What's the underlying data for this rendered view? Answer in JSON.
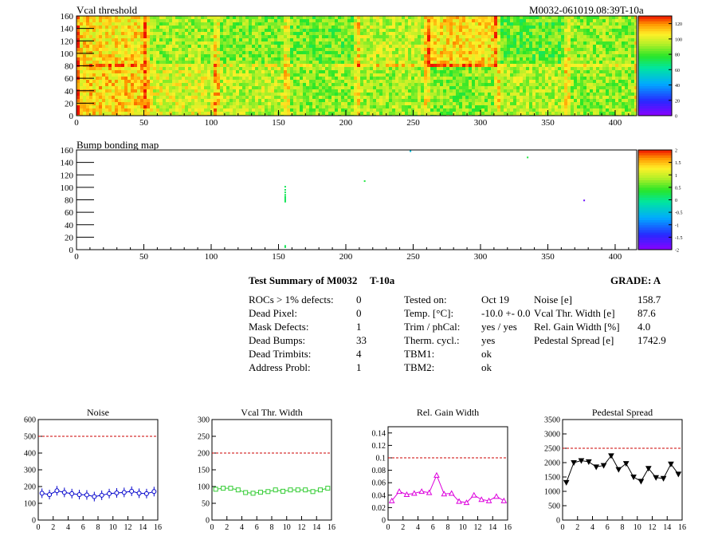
{
  "header": {
    "map1_title": "Vcal threshold",
    "module_id": "M0032-061019.08:39T-10a",
    "map2_title": "Bump bonding map"
  },
  "colors": {
    "red_ref": "#cc0000",
    "blue_line": "#0000cc",
    "green_line": "#33cc33",
    "magenta_line": "#dd00dd",
    "black_line": "#000000"
  },
  "summary": {
    "title": "Test Summary of M0032",
    "tag": "T-10a",
    "grade": "GRADE:  A",
    "left": [
      {
        "label": "ROCs > 1% defects:",
        "value": "0"
      },
      {
        "label": "Dead Pixel:",
        "value": "0"
      },
      {
        "label": "Mask Defects:",
        "value": "1"
      },
      {
        "label": "Dead Bumps:",
        "value": "33"
      },
      {
        "label": "Dead Trimbits:",
        "value": "4"
      },
      {
        "label": "Address Probl:",
        "value": "1"
      }
    ],
    "mid": [
      {
        "label": "Tested on:",
        "value": "Oct 19"
      },
      {
        "label": "Temp. [°C]:",
        "value": "-10.0 +- 0.0"
      },
      {
        "label": "Trim / phCal:",
        "value": "yes / yes"
      },
      {
        "label": "Therm. cycl.:",
        "value": "yes"
      },
      {
        "label": "TBM1:",
        "value": "ok"
      },
      {
        "label": "TBM2:",
        "value": "ok"
      }
    ],
    "right": [
      {
        "label": "Noise [e]",
        "value": "158.7"
      },
      {
        "label": "Vcal Thr. Width [e]",
        "value": "87.6"
      },
      {
        "label": "Rel. Gain Width [%]",
        "value": "4.0"
      },
      {
        "label": "Pedestal Spread [e]",
        "value": "1742.9"
      }
    ]
  },
  "chart_data": [
    {
      "type": "heatmap",
      "title": "Vcal threshold",
      "xlim": [
        0,
        416
      ],
      "ylim": [
        0,
        160
      ],
      "x_ticks": [
        0,
        50,
        100,
        150,
        200,
        250,
        300,
        350,
        400
      ],
      "y_ticks": [
        0,
        20,
        40,
        60,
        80,
        100,
        120,
        140,
        160
      ],
      "colorbar_ticks": [
        0,
        20,
        40,
        60,
        80,
        100,
        120
      ],
      "colorbar_range": [
        0,
        130
      ],
      "roc_block_mean_values_top": [
        108,
        92,
        88,
        86,
        96,
        108,
        84,
        90
      ],
      "roc_block_mean_values_bottom": [
        110,
        100,
        96,
        90,
        92,
        88,
        94,
        90
      ]
    },
    {
      "type": "scatter",
      "title": "Bump bonding map",
      "xlim": [
        0,
        416
      ],
      "ylim": [
        0,
        160
      ],
      "x_ticks": [
        0,
        50,
        100,
        150,
        200,
        250,
        300,
        350,
        400
      ],
      "y_ticks": [
        0,
        20,
        40,
        60,
        80,
        100,
        120,
        140,
        160
      ],
      "colorbar_ticks": [
        -2,
        -1.5,
        -1,
        -0.5,
        0,
        0.5,
        1,
        1.5,
        2
      ],
      "points": [
        {
          "x": 155,
          "y": 101,
          "v": 0.2
        },
        {
          "x": 155,
          "y": 96,
          "v": 0.2
        },
        {
          "x": 155,
          "y": 92,
          "v": 0.2
        },
        {
          "x": 155,
          "y": 88,
          "v": 0.2
        },
        {
          "x": 155,
          "y": 85,
          "v": 0.2
        },
        {
          "x": 155,
          "y": 83,
          "v": 0.2
        },
        {
          "x": 155,
          "y": 81,
          "v": 0.2
        },
        {
          "x": 155,
          "y": 79,
          "v": 0.2
        },
        {
          "x": 155,
          "y": 77,
          "v": 0.2
        },
        {
          "x": 155,
          "y": 6,
          "v": 0.2
        },
        {
          "x": 155,
          "y": 4,
          "v": 0.2
        },
        {
          "x": 248,
          "y": 158,
          "v": -0.5
        },
        {
          "x": 335,
          "y": 148,
          "v": 0.3
        },
        {
          "x": 377,
          "y": 79,
          "v": -1.8
        },
        {
          "x": 214,
          "y": 110,
          "v": 0.3
        }
      ]
    },
    {
      "type": "line",
      "title": "Noise",
      "xlim": [
        0,
        16
      ],
      "ylim": [
        0,
        600
      ],
      "x_ticks": [
        0,
        2,
        4,
        6,
        8,
        10,
        12,
        14,
        16
      ],
      "y_ticks": [
        0,
        100,
        200,
        300,
        400,
        500,
        600
      ],
      "reference": 500,
      "marker": "circle",
      "x": [
        0.5,
        1.5,
        2.5,
        3.5,
        4.5,
        5.5,
        6.5,
        7.5,
        8.5,
        9.5,
        10.5,
        11.5,
        12.5,
        13.5,
        14.5,
        15.5
      ],
      "values": [
        160,
        152,
        175,
        165,
        158,
        152,
        150,
        140,
        148,
        158,
        162,
        165,
        172,
        160,
        158,
        170
      ]
    },
    {
      "type": "line",
      "title": "Vcal Thr. Width",
      "xlim": [
        0,
        16
      ],
      "ylim": [
        0,
        300
      ],
      "x_ticks": [
        0,
        2,
        4,
        6,
        8,
        10,
        12,
        14,
        16
      ],
      "y_ticks": [
        0,
        50,
        100,
        150,
        200,
        250,
        300
      ],
      "reference": 200,
      "marker": "square",
      "x": [
        0.5,
        1.5,
        2.5,
        3.5,
        4.5,
        5.5,
        6.5,
        7.5,
        8.5,
        9.5,
        10.5,
        11.5,
        12.5,
        13.5,
        14.5,
        15.5
      ],
      "values": [
        92,
        95,
        95,
        90,
        82,
        80,
        83,
        85,
        90,
        86,
        90,
        90,
        90,
        85,
        90,
        95
      ]
    },
    {
      "type": "line",
      "title": "Rel. Gain Width",
      "xlim": [
        0,
        16
      ],
      "ylim": [
        0,
        0.15
      ],
      "x_ticks": [
        0,
        2,
        4,
        6,
        8,
        10,
        12,
        14,
        16
      ],
      "y_ticks": [
        0,
        0.02,
        0.04,
        0.06,
        0.08,
        0.1,
        0.12,
        0.14
      ],
      "reference": 0.1,
      "marker": "triangle",
      "x": [
        0.5,
        1.5,
        2.5,
        3.5,
        4.5,
        5.5,
        6.5,
        7.5,
        8.5,
        9.5,
        10.5,
        11.5,
        12.5,
        13.5,
        14.5,
        15.5
      ],
      "values": [
        0.031,
        0.046,
        0.041,
        0.043,
        0.046,
        0.044,
        0.072,
        0.042,
        0.043,
        0.03,
        0.028,
        0.04,
        0.033,
        0.031,
        0.038,
        0.031
      ]
    },
    {
      "type": "line",
      "title": "Pedestal Spread",
      "xlim": [
        0,
        16
      ],
      "ylim": [
        0,
        3500
      ],
      "x_ticks": [
        0,
        2,
        4,
        6,
        8,
        10,
        12,
        14,
        16
      ],
      "y_ticks": [
        0,
        500,
        1000,
        1500,
        2000,
        2500,
        3000,
        3500
      ],
      "reference": 2500,
      "marker": "triangle-down",
      "x": [
        0.5,
        1.5,
        2.5,
        3.5,
        4.5,
        5.5,
        6.5,
        7.5,
        8.5,
        9.5,
        10.5,
        11.5,
        12.5,
        13.5,
        14.5,
        15.5
      ],
      "values": [
        1310,
        2000,
        2070,
        2030,
        1850,
        1900,
        2240,
        1760,
        1970,
        1500,
        1350,
        1800,
        1480,
        1450,
        1950,
        1600
      ]
    }
  ]
}
